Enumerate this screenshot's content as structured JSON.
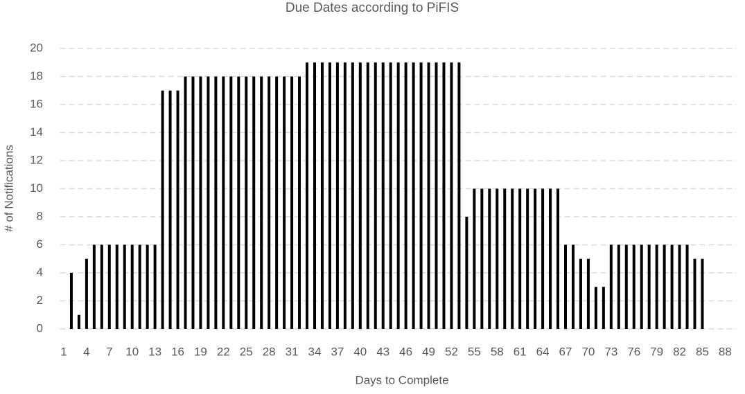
{
  "chart_data": {
    "type": "bar",
    "title": "Due Dates according to PiFIS",
    "x_label": "Days to Complete",
    "y_label": "# of Notifications",
    "categories": [
      "1",
      null,
      null,
      "4",
      null,
      null,
      "7",
      null,
      null,
      "10",
      null,
      null,
      "13",
      null,
      null,
      "16",
      null,
      null,
      "19",
      null,
      null,
      "22",
      null,
      null,
      "25",
      null,
      null,
      "28",
      null,
      null,
      "31",
      null,
      null,
      "34",
      null,
      null,
      "37",
      null,
      null,
      "40",
      null,
      null,
      "43",
      null,
      null,
      "46",
      null,
      null,
      "49",
      null,
      null,
      "52",
      null,
      null,
      "55",
      null,
      null,
      "58",
      null,
      null,
      "61",
      null,
      null,
      "64",
      null,
      null,
      "67",
      null,
      null,
      "70",
      null,
      null,
      "73",
      null,
      null,
      "76",
      null,
      null,
      "79",
      null,
      null,
      "82",
      null,
      null,
      "85",
      null,
      null,
      "88",
      null
    ],
    "values": [
      0,
      4,
      1,
      5,
      6,
      6,
      6,
      6,
      6,
      6,
      6,
      6,
      6,
      17,
      17,
      17,
      18,
      18,
      18,
      18,
      18,
      18,
      18,
      18,
      18,
      18,
      18,
      18,
      18,
      18,
      18,
      18,
      19,
      19,
      19,
      19,
      19,
      19,
      19,
      19,
      19,
      19,
      19,
      19,
      19,
      19,
      19,
      19,
      19,
      19,
      19,
      19,
      19,
      8,
      10,
      10,
      10,
      10,
      10,
      10,
      10,
      10,
      10,
      10,
      10,
      10,
      6,
      6,
      5,
      5,
      3,
      3,
      6,
      6,
      6,
      6,
      6,
      6,
      6,
      6,
      6,
      6,
      6,
      5,
      5,
      0,
      0,
      0,
      0
    ],
    "color": "#000000",
    "ylim": [
      0,
      20
    ],
    "yticks": [
      0,
      2,
      4,
      6,
      8,
      10,
      12,
      14,
      16,
      18,
      20
    ],
    "grid": true
  }
}
